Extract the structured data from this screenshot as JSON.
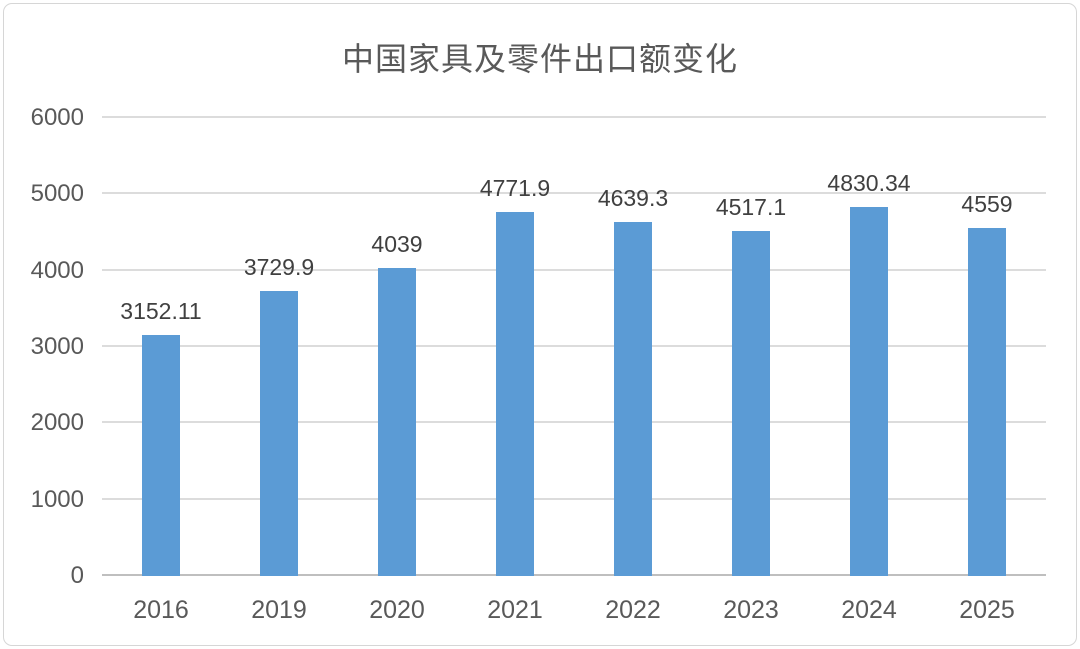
{
  "chart_data": {
    "type": "bar",
    "title": "中国家具及零件出口额变化",
    "categories": [
      "2016",
      "2019",
      "2020",
      "2021",
      "2022",
      "2023",
      "2024",
      "2025"
    ],
    "values": [
      3152.11,
      3729.9,
      4039,
      4771.9,
      4639.3,
      4517.1,
      4830.34,
      4559
    ],
    "data_labels": [
      "3152.11",
      "3729.9",
      "4039",
      "4771.9",
      "4639.3",
      "4517.1",
      "4830.34",
      "4559"
    ],
    "xlabel": "",
    "ylabel": "",
    "ylim": [
      0,
      6000
    ],
    "yticks": [
      0,
      1000,
      2000,
      3000,
      4000,
      5000,
      6000
    ],
    "grid": true,
    "legend": false,
    "colors": {
      "bar": "#5b9bd5",
      "gridline": "#dcdcdc",
      "baseline": "#bfbfbf",
      "title_text": "#595959",
      "axis_text": "#595959",
      "data_label_text": "#404040",
      "frame_border": "#d6d6d6",
      "background": "#ffffff"
    }
  }
}
